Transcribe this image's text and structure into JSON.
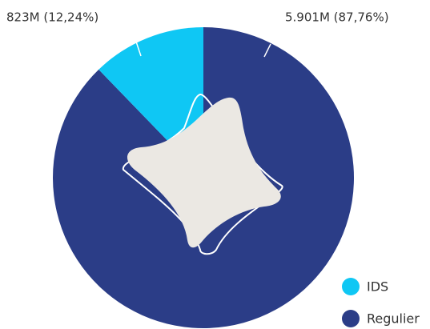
{
  "chart_data": {
    "type": "pie",
    "categories": [
      "Regulier",
      "IDS"
    ],
    "values": [
      5901,
      823
    ],
    "value_labels": [
      "5.901M (87,76%)",
      "823M (12,24%)"
    ],
    "colors": [
      "#2b3d87",
      "#0fc7f4"
    ],
    "legend": "bottom-right"
  }
}
